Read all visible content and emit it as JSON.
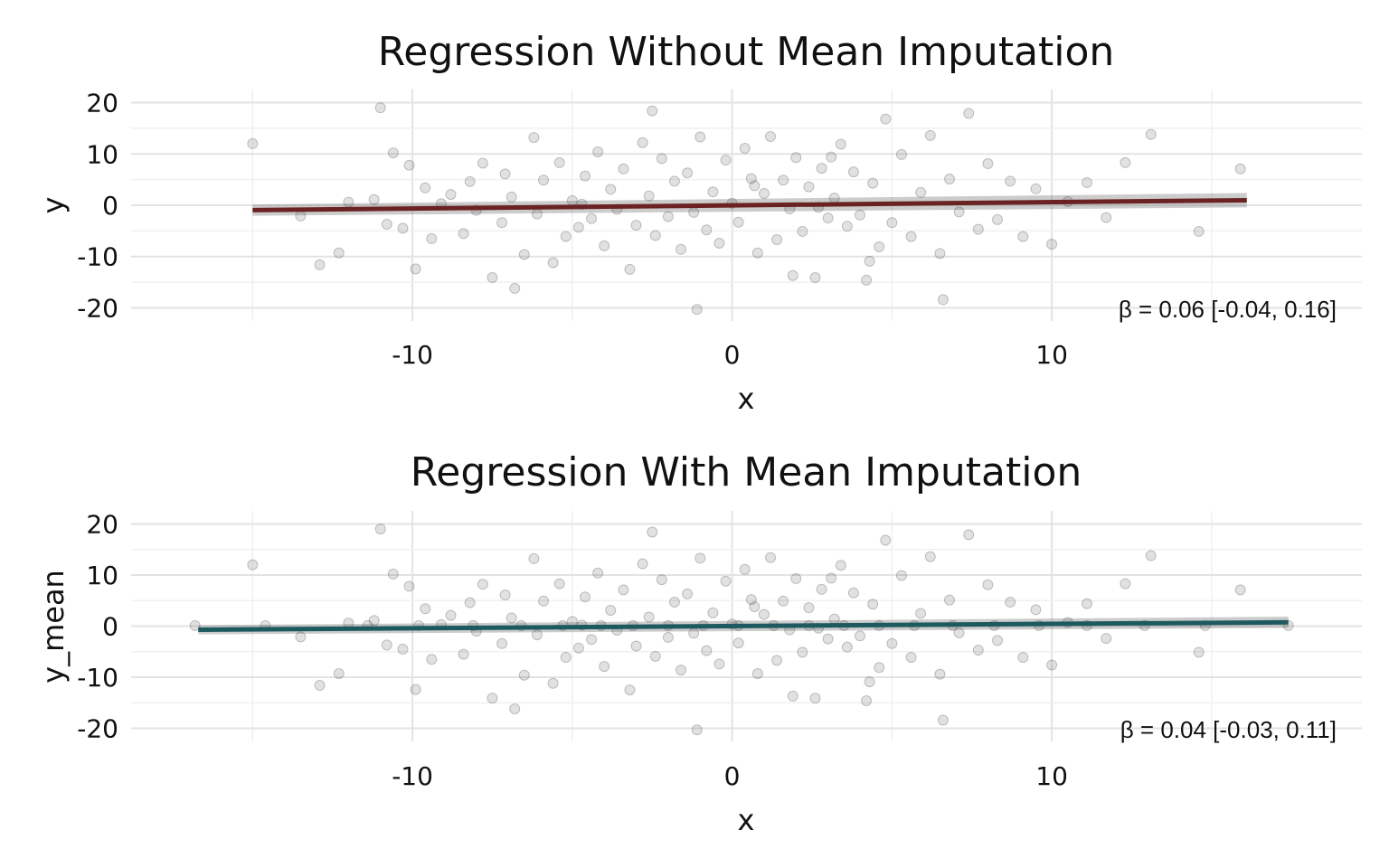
{
  "chart_data": [
    {
      "type": "scatter",
      "title": "Regression Without Mean Imputation",
      "xlabel": "x",
      "ylabel": "y",
      "xlim": [
        -18.8,
        19.7
      ],
      "ylim": [
        -21.5,
        21.5
      ],
      "x_ticks": [
        -10,
        0,
        10
      ],
      "y_ticks": [
        20,
        10,
        0,
        -10,
        -20
      ],
      "x_tick_labels": [
        "-10",
        "0",
        "10"
      ],
      "y_tick_labels": [
        "20",
        "10",
        "0",
        "-10",
        "-20"
      ],
      "grid": true,
      "annotation": "β = 0.06 [-0.04, 0.16]",
      "line_color": "#6b2222",
      "regression": {
        "x": [
          -15,
          16.1
        ],
        "y": [
          -0.95,
          0.98
        ],
        "band_halfwidth": [
          1.1,
          1.4
        ]
      },
      "series": [
        {
          "x": [
            -15,
            -13.5,
            -12.9,
            -12.3,
            -12,
            -11.2,
            -11,
            -10.8,
            -10.6,
            -10.3,
            -10.1,
            -9.9,
            -9.6,
            -9.4,
            -9.1,
            -8.8,
            -8.4,
            -8.2,
            -8,
            -7.8,
            -7.5,
            -7.2,
            -7.1,
            -6.9,
            -6.5,
            -6.2,
            -6.1,
            -5.9,
            -5.6,
            -5.4,
            -5.2,
            -5,
            -4.8,
            -4.6,
            -4.4,
            -4.2,
            -4,
            -3.8,
            -3.6,
            -3.4,
            -3.2,
            -3,
            -2.8,
            -2.6,
            -2.4,
            -2.2,
            -2,
            -1.8,
            -1.6,
            -1.4,
            -1.2,
            -1,
            -0.8,
            -0.6,
            -0.4,
            -0.2,
            0,
            0.2,
            0.4,
            0.6,
            0.8,
            1,
            1.2,
            1.4,
            1.6,
            1.8,
            2,
            2.2,
            2.4,
            2.6,
            2.8,
            3,
            3.2,
            3.4,
            3.6,
            3.8,
            4,
            4.2,
            4.4,
            4.6,
            4.8,
            5,
            5.3,
            5.6,
            5.9,
            6.2,
            6.5,
            6.8,
            7.1,
            7.4,
            7.7,
            8,
            8.3,
            8.7,
            9.1,
            9.5,
            10,
            10.5,
            11.1,
            11.7,
            12.3,
            13.1,
            14.6,
            15.9,
            -2.5,
            -1.1,
            0.7,
            1.9,
            3.1,
            -6.8,
            6.6,
            -4.7,
            4.3,
            2.7
          ],
          "y": [
            12,
            -2.1,
            -11.6,
            -9.3,
            0.6,
            1.1,
            19,
            -3.7,
            10.2,
            -4.5,
            7.8,
            -12.4,
            3.4,
            -6.5,
            0.3,
            2.1,
            -5.5,
            4.6,
            -1,
            8.2,
            -14.1,
            -3.4,
            6.1,
            1.6,
            -9.6,
            13.2,
            -1.7,
            4.9,
            -11.2,
            8.3,
            -6.1,
            0.9,
            -4.3,
            5.7,
            -2.6,
            10.4,
            -7.9,
            3.1,
            -0.8,
            7.1,
            -12.5,
            -3.9,
            12.2,
            1.8,
            -5.9,
            9.1,
            -2.2,
            4.7,
            -8.6,
            6.3,
            -1.4,
            13.3,
            -4.8,
            2.6,
            -7.4,
            8.8,
            0.4,
            -3.3,
            11.1,
            5.2,
            -9.3,
            2.3,
            13.4,
            -6.7,
            4.9,
            -0.7,
            9.3,
            -5.1,
            3.6,
            -14.1,
            7.2,
            -2.5,
            1.4,
            11.9,
            -4.1,
            6.5,
            -1.9,
            -14.6,
            4.3,
            -8.1,
            16.8,
            -3.4,
            9.9,
            -6.1,
            2.5,
            13.6,
            -9.4,
            5.1,
            -1.3,
            17.9,
            -4.7,
            8.1,
            -2.8,
            4.7,
            -6.1,
            3.2,
            -7.6,
            0.7,
            4.4,
            -2.4,
            8.3,
            13.8,
            -5.1,
            7.1,
            18.4,
            -20.3,
            3.8,
            -13.7,
            9.4,
            -16.2,
            -18.4,
            0.2,
            -10.9,
            -0.4
          ],
          "color": "#3c3c3c",
          "alpha": 0.2
        }
      ]
    },
    {
      "type": "scatter",
      "title": "Regression With Mean Imputation",
      "xlabel": "x",
      "ylabel": "y_mean",
      "xlim": [
        -18.8,
        19.7
      ],
      "ylim": [
        -21.5,
        21.5
      ],
      "x_ticks": [
        -10,
        0,
        10
      ],
      "y_ticks": [
        20,
        10,
        0,
        -10,
        -20
      ],
      "x_tick_labels": [
        "-10",
        "0",
        "10"
      ],
      "y_tick_labels": [
        "20",
        "10",
        "0",
        "-10",
        "-20"
      ],
      "grid": true,
      "annotation": "β = 0.04 [-0.03, 0.11]",
      "line_color": "#1d5a5f",
      "regression": {
        "x": [
          -16.7,
          17.4
        ],
        "y": [
          -0.7,
          0.75
        ],
        "band_halfwidth": [
          0.9,
          1.1
        ]
      },
      "series": [
        {
          "x": [
            -15,
            -13.5,
            -12.9,
            -12.3,
            -12,
            -11.2,
            -11,
            -10.8,
            -10.6,
            -10.3,
            -10.1,
            -9.9,
            -9.6,
            -9.4,
            -9.1,
            -8.8,
            -8.4,
            -8.2,
            -8,
            -7.8,
            -7.5,
            -7.2,
            -7.1,
            -6.9,
            -6.5,
            -6.2,
            -6.1,
            -5.9,
            -5.6,
            -5.4,
            -5.2,
            -5,
            -4.8,
            -4.6,
            -4.4,
            -4.2,
            -4,
            -3.8,
            -3.6,
            -3.4,
            -3.2,
            -3,
            -2.8,
            -2.6,
            -2.4,
            -2.2,
            -2,
            -1.8,
            -1.6,
            -1.4,
            -1.2,
            -1,
            -0.8,
            -0.6,
            -0.4,
            -0.2,
            0,
            0.2,
            0.4,
            0.6,
            0.8,
            1,
            1.2,
            1.4,
            1.6,
            1.8,
            2,
            2.2,
            2.4,
            2.6,
            2.8,
            3,
            3.2,
            3.4,
            3.6,
            3.8,
            4,
            4.2,
            4.4,
            4.6,
            4.8,
            5,
            5.3,
            5.6,
            5.9,
            6.2,
            6.5,
            6.8,
            7.1,
            7.4,
            7.7,
            8,
            8.3,
            8.7,
            9.1,
            9.5,
            10,
            10.5,
            11.1,
            11.7,
            12.3,
            13.1,
            14.6,
            15.9,
            -2.5,
            -1.1,
            0.7,
            1.9,
            3.1,
            -6.8,
            6.6,
            -4.7,
            4.3,
            2.7,
            -16.8,
            -14.6,
            -11.4,
            -9.8,
            -8.1,
            -6.6,
            -5.3,
            -4.1,
            -3.1,
            -2,
            -0.9,
            0.2,
            1.3,
            2.4,
            3.5,
            4.6,
            5.7,
            6.9,
            8.2,
            9.6,
            11.1,
            12.9,
            14.8,
            17.4
          ],
          "y": [
            12,
            -2.1,
            -11.6,
            -9.3,
            0.6,
            1.1,
            19,
            -3.7,
            10.2,
            -4.5,
            7.8,
            -12.4,
            3.4,
            -6.5,
            0.3,
            2.1,
            -5.5,
            4.6,
            -1,
            8.2,
            -14.1,
            -3.4,
            6.1,
            1.6,
            -9.6,
            13.2,
            -1.7,
            4.9,
            -11.2,
            8.3,
            -6.1,
            0.9,
            -4.3,
            5.7,
            -2.6,
            10.4,
            -7.9,
            3.1,
            -0.8,
            7.1,
            -12.5,
            -3.9,
            12.2,
            1.8,
            -5.9,
            9.1,
            -2.2,
            4.7,
            -8.6,
            6.3,
            -1.4,
            13.3,
            -4.8,
            2.6,
            -7.4,
            8.8,
            0.4,
            -3.3,
            11.1,
            5.2,
            -9.3,
            2.3,
            13.4,
            -6.7,
            4.9,
            -0.7,
            9.3,
            -5.1,
            3.6,
            -14.1,
            7.2,
            -2.5,
            1.4,
            11.9,
            -4.1,
            6.5,
            -1.9,
            -14.6,
            4.3,
            -8.1,
            16.8,
            -3.4,
            9.9,
            -6.1,
            2.5,
            13.6,
            -9.4,
            5.1,
            -1.3,
            17.9,
            -4.7,
            8.1,
            -2.8,
            4.7,
            -6.1,
            3.2,
            -7.6,
            0.7,
            4.4,
            -2.4,
            8.3,
            13.8,
            -5.1,
            7.1,
            18.4,
            -20.3,
            3.8,
            -13.7,
            9.4,
            -16.2,
            -18.4,
            0.2,
            -10.9,
            -0.4,
            0.1,
            0.1,
            0.1,
            0.1,
            0.1,
            0.1,
            0.1,
            0.1,
            0.1,
            0.1,
            0.1,
            0.1,
            0.1,
            0.1,
            0.1,
            0.1,
            0.1,
            0.1,
            0.1,
            0.1,
            0.1,
            0.1,
            0.1,
            0.1
          ],
          "color": "#3c3c3c",
          "alpha": 0.2
        }
      ]
    }
  ]
}
